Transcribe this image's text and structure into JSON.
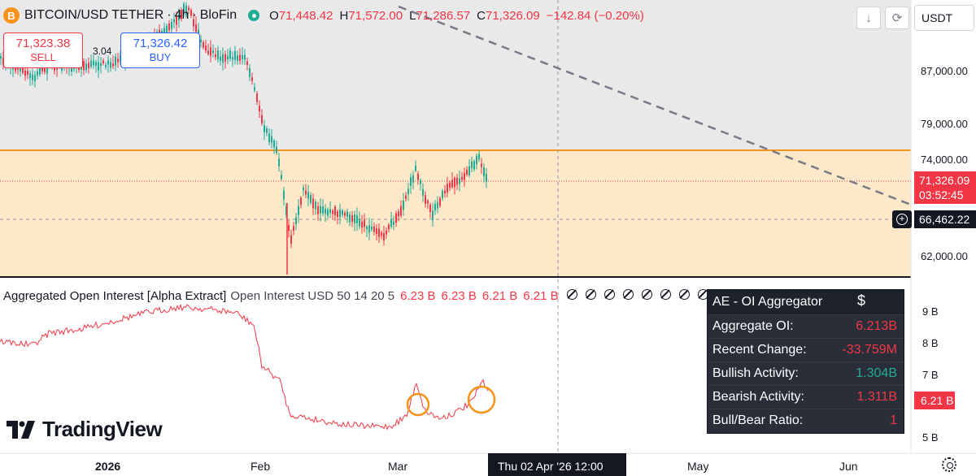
{
  "symbol": {
    "coin_letter": "B",
    "name": "BITCOIN/USD TETHER",
    "separator": "·",
    "interval": "4h",
    "exchange": "BloFin",
    "open_label": "O",
    "open": "71,448.42",
    "high_label": "H",
    "high": "71,572.00",
    "low_label": "L",
    "low": "71,286.57",
    "close_label": "C",
    "close": "71,326.09",
    "change": "−142.84 (−0.20%)"
  },
  "trade": {
    "sell_price": "71,323.38",
    "sell_label": "SELL",
    "spread": "3.04",
    "buy_price": "71,326.42",
    "buy_label": "BUY"
  },
  "toolbar": {
    "currency": "USDT",
    "down_arrow": "↓",
    "reload": "⟳"
  },
  "price_axis": {
    "labels": [
      "87,000.00",
      "79,000.00",
      "74,000.00",
      "62,000.00"
    ],
    "current_price": "71,326.09",
    "countdown": "03:52:45",
    "crosshair_price": "66,462.22"
  },
  "indicator": {
    "title": "Aggregated Open Interest [Alpha Extract]",
    "args": "Open Interest USD 50 14 20 5",
    "values": [
      "6.23 B",
      "6.23 B",
      "6.21 B",
      "6.21 B"
    ],
    "null_count": 8,
    "axis_labels": [
      "9 B",
      "8 B",
      "7 B",
      "5 B"
    ],
    "current_value": "6.21 B"
  },
  "oi_panel": {
    "title": "AE - OI Aggregator",
    "icon": "$",
    "rows": [
      {
        "label": "Aggregate OI:",
        "value": "6.213B",
        "color": "#f23645"
      },
      {
        "label": "Recent Change:",
        "value": "-33.759M",
        "color": "#f23645"
      },
      {
        "label": "Bullish Activity:",
        "value": "1.304B",
        "color": "#22ab94"
      },
      {
        "label": "Bearish Activity:",
        "value": "1.311B",
        "color": "#f23645"
      },
      {
        "label": "Bull/Bear Ratio:",
        "value": "1",
        "color": "#f23645"
      }
    ]
  },
  "time_axis": {
    "labels": [
      "2026",
      "Feb",
      "Mar",
      "May",
      "Jun"
    ],
    "cursor": "Thu 02 Apr '26   12:00"
  },
  "logo": {
    "text": "TradingView"
  },
  "colors": {
    "up": "#22ab94",
    "down": "#f23645",
    "zone": "#fde9c9",
    "resistance": "#f7931a"
  }
}
